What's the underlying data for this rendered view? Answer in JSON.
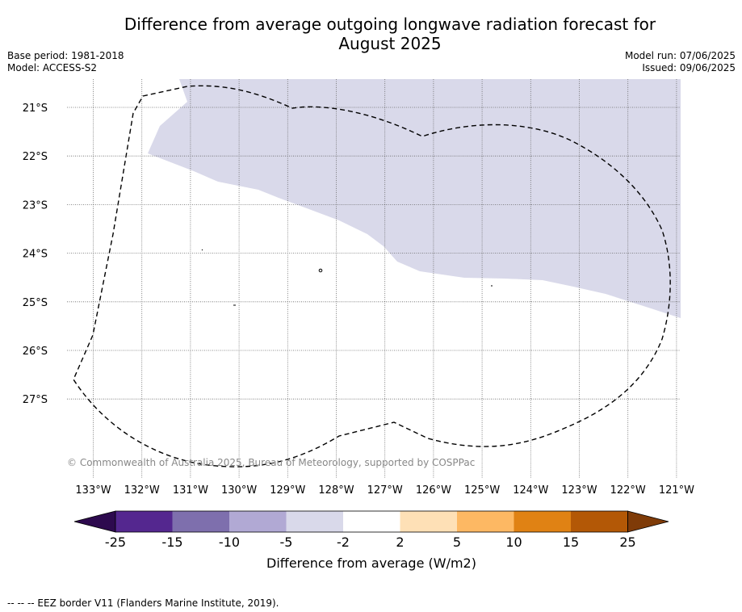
{
  "title_line1": "Difference from average outgoing longwave radiation forecast for",
  "title_line2": "August 2025",
  "meta_left": [
    "Base period: 1981-2018",
    "Model: ACCESS-S2"
  ],
  "meta_right": [
    "Model run: 07/06/2025",
    "Issued: 09/06/2025"
  ],
  "copyright": "© Commonwealth of Australia 2025, Bureau of Meteorology, supported by COSPPac",
  "footer": "-- -- -- EEZ border V11 (Flanders Marine Institute, 2019).",
  "map": {
    "lat_labels": [
      "21°S",
      "22°S",
      "23°S",
      "24°S",
      "25°S",
      "26°S",
      "27°S"
    ],
    "lon_labels": [
      "133°W",
      "132°W",
      "131°W",
      "130°W",
      "129°W",
      "128°W",
      "127°W",
      "126°W",
      "125°W",
      "124°W",
      "123°W",
      "122°W",
      "121°W"
    ],
    "shaded_category": "-5 to -2"
  },
  "colorbar": {
    "label": "Difference from average (W/m2)",
    "ticks": [
      "-25",
      "-15",
      "-10",
      "-5",
      "-2",
      "2",
      "5",
      "10",
      "15",
      "25"
    ],
    "colors": [
      "#2d0a4e",
      "#54278f",
      "#7e6fad",
      "#b1a9d4",
      "#d9d9ea",
      "#ffffff",
      "#fee0b6",
      "#fdb863",
      "#e08214",
      "#b35806",
      "#7f3b08"
    ]
  }
}
